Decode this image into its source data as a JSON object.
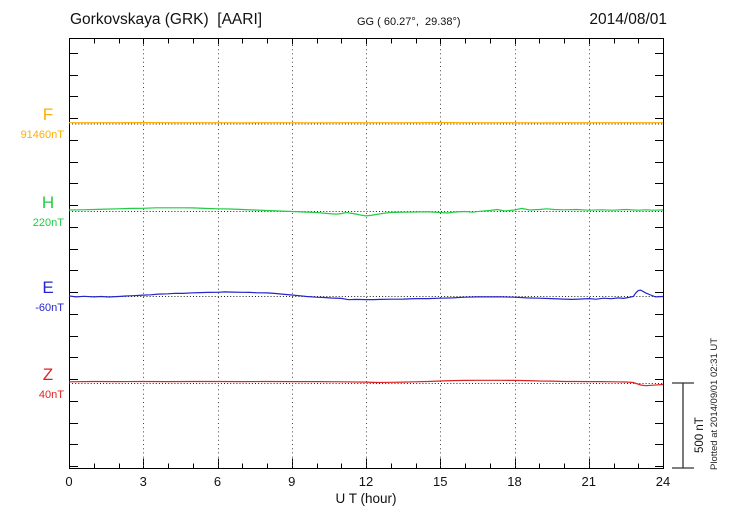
{
  "header": {
    "title": "Gorkovskaya (GRK)  [AARI]",
    "coords": "GG ( 60.27°,  29.38°)",
    "date": "2014/08/01"
  },
  "side": {
    "plotted_at": "Plotted at 2014/09/01 02:31 UT",
    "scale_label": "500 nT"
  },
  "chart_data": {
    "type": "line",
    "xlabel": "U T (hour)",
    "xlim": [
      0,
      24
    ],
    "x_ticks": [
      0,
      3,
      6,
      9,
      12,
      15,
      18,
      21,
      24
    ],
    "x_minor_step_hours": 1,
    "grid": "dotted vertical lines every 3 hours; dotted horizontal baseline per component",
    "scale_bar": {
      "label": "500 nT",
      "nT": 500
    },
    "series": [
      {
        "name": "F",
        "label": "F",
        "unit_label": "91460nT",
        "base": 91460,
        "color": "#FFAF00",
        "points": [
          [
            0,
            91465
          ],
          [
            1,
            91465
          ],
          [
            2,
            91465
          ],
          [
            3,
            91466
          ],
          [
            4,
            91465
          ],
          [
            5,
            91465
          ],
          [
            6,
            91465
          ],
          [
            7,
            91464
          ],
          [
            8,
            91465
          ],
          [
            9,
            91465
          ],
          [
            10,
            91464
          ],
          [
            11,
            91465
          ],
          [
            12,
            91465
          ],
          [
            13,
            91465
          ],
          [
            14,
            91465
          ],
          [
            15,
            91466
          ],
          [
            16,
            91465
          ],
          [
            17,
            91465
          ],
          [
            18,
            91465
          ],
          [
            19,
            91464
          ],
          [
            20,
            91465
          ],
          [
            21,
            91465
          ],
          [
            22,
            91465
          ],
          [
            23,
            91465
          ],
          [
            24,
            91465
          ]
        ]
      },
      {
        "name": "H",
        "label": "H",
        "unit_label": "220nT",
        "base": 220,
        "color": "#22CC44",
        "points": [
          [
            0,
            226
          ],
          [
            0.5,
            227
          ],
          [
            1,
            229
          ],
          [
            1.5,
            231
          ],
          [
            2,
            233
          ],
          [
            2.5,
            235
          ],
          [
            3,
            236
          ],
          [
            3.5,
            239
          ],
          [
            4,
            239
          ],
          [
            4.5,
            239
          ],
          [
            5,
            238
          ],
          [
            5.5,
            235
          ],
          [
            6,
            233
          ],
          [
            6.5,
            232
          ],
          [
            7,
            229
          ],
          [
            7.5,
            226
          ],
          [
            8,
            223
          ],
          [
            8.5,
            220
          ],
          [
            9,
            217
          ],
          [
            9.5,
            214
          ],
          [
            10,
            211
          ],
          [
            10.5,
            205
          ],
          [
            10.8,
            202
          ],
          [
            11,
            205
          ],
          [
            11.2,
            211
          ],
          [
            11.5,
            205
          ],
          [
            11.8,
            196
          ],
          [
            12,
            191
          ],
          [
            12.2,
            194
          ],
          [
            12.5,
            202
          ],
          [
            12.8,
            208
          ],
          [
            13,
            211
          ],
          [
            13.5,
            213
          ],
          [
            14,
            214
          ],
          [
            14.5,
            215
          ],
          [
            15,
            211
          ],
          [
            15.3,
            208
          ],
          [
            15.6,
            214
          ],
          [
            16,
            217
          ],
          [
            16.3,
            213
          ],
          [
            16.6,
            218
          ],
          [
            17,
            223
          ],
          [
            17.3,
            229
          ],
          [
            17.6,
            220
          ],
          [
            18,
            226
          ],
          [
            18.3,
            235
          ],
          [
            18.6,
            226
          ],
          [
            19,
            229
          ],
          [
            19.3,
            233
          ],
          [
            19.6,
            229
          ],
          [
            20,
            227
          ],
          [
            20.5,
            229
          ],
          [
            21,
            225
          ],
          [
            21.5,
            227
          ],
          [
            22,
            225
          ],
          [
            22.5,
            229
          ],
          [
            23,
            225
          ],
          [
            23.3,
            227
          ],
          [
            23.6,
            225
          ],
          [
            24,
            226
          ]
        ]
      },
      {
        "name": "E",
        "label": "E",
        "unit_label": "-60nT",
        "base": -60,
        "color": "#2525CC",
        "points": [
          [
            0,
            -60
          ],
          [
            0.3,
            -65
          ],
          [
            0.6,
            -62
          ],
          [
            1,
            -65
          ],
          [
            1.3,
            -63
          ],
          [
            1.6,
            -66
          ],
          [
            2,
            -63
          ],
          [
            2.3,
            -60
          ],
          [
            2.6,
            -58
          ],
          [
            3,
            -55
          ],
          [
            3.3,
            -53
          ],
          [
            3.6,
            -49
          ],
          [
            4,
            -47
          ],
          [
            4.3,
            -44
          ],
          [
            4.6,
            -45
          ],
          [
            5,
            -41
          ],
          [
            5.3,
            -40
          ],
          [
            5.6,
            -39
          ],
          [
            6,
            -38
          ],
          [
            6.3,
            -36
          ],
          [
            6.6,
            -37
          ],
          [
            7,
            -38
          ],
          [
            7.3,
            -39
          ],
          [
            7.6,
            -41
          ],
          [
            8,
            -42
          ],
          [
            8.3,
            -45
          ],
          [
            8.6,
            -49
          ],
          [
            9,
            -54
          ],
          [
            9.3,
            -58
          ],
          [
            9.6,
            -63
          ],
          [
            10,
            -67
          ],
          [
            10.3,
            -69
          ],
          [
            10.6,
            -72
          ],
          [
            11,
            -74
          ],
          [
            11.3,
            -82
          ],
          [
            11.6,
            -80
          ],
          [
            12,
            -81
          ],
          [
            12.3,
            -81
          ],
          [
            12.6,
            -80
          ],
          [
            13,
            -79
          ],
          [
            13.5,
            -78
          ],
          [
            14,
            -75
          ],
          [
            14.5,
            -75
          ],
          [
            15,
            -73
          ],
          [
            15.5,
            -71
          ],
          [
            16,
            -67
          ],
          [
            16.5,
            -65
          ],
          [
            17,
            -65
          ],
          [
            17.5,
            -65
          ],
          [
            18,
            -67
          ],
          [
            18.5,
            -71
          ],
          [
            19,
            -73
          ],
          [
            19.5,
            -75
          ],
          [
            20,
            -78
          ],
          [
            20.3,
            -80
          ],
          [
            20.6,
            -78
          ],
          [
            21,
            -75
          ],
          [
            21.3,
            -79
          ],
          [
            21.6,
            -73
          ],
          [
            21.9,
            -76
          ],
          [
            22.2,
            -71
          ],
          [
            22.4,
            -74
          ],
          [
            22.6,
            -69
          ],
          [
            22.8,
            -63
          ],
          [
            22.9,
            -42
          ],
          [
            23,
            -28
          ],
          [
            23.1,
            -25
          ],
          [
            23.3,
            -42
          ],
          [
            23.5,
            -54
          ],
          [
            23.7,
            -65
          ],
          [
            24,
            -63
          ]
        ]
      },
      {
        "name": "Z",
        "label": "Z",
        "unit_label": "40nT",
        "base": 40,
        "color": "#DD2222",
        "points": [
          [
            0,
            47
          ],
          [
            1,
            49
          ],
          [
            2,
            48
          ],
          [
            3,
            49
          ],
          [
            4,
            48
          ],
          [
            5,
            49
          ],
          [
            6,
            49
          ],
          [
            7,
            48
          ],
          [
            8,
            49
          ],
          [
            9,
            48
          ],
          [
            10,
            48
          ],
          [
            11,
            47
          ],
          [
            12,
            45
          ],
          [
            12.5,
            43
          ],
          [
            13,
            44
          ],
          [
            13.5,
            45
          ],
          [
            14,
            47
          ],
          [
            14.5,
            49
          ],
          [
            15,
            52
          ],
          [
            15.5,
            54
          ],
          [
            16,
            55
          ],
          [
            16.5,
            56
          ],
          [
            17,
            56
          ],
          [
            17.5,
            56
          ],
          [
            18,
            55
          ],
          [
            18.5,
            54
          ],
          [
            19,
            52
          ],
          [
            19.5,
            51
          ],
          [
            20,
            49
          ],
          [
            20.5,
            49
          ],
          [
            21,
            48
          ],
          [
            21.5,
            48
          ],
          [
            22,
            47
          ],
          [
            22.5,
            46
          ],
          [
            22.8,
            43
          ],
          [
            23.1,
            28
          ],
          [
            23.3,
            24
          ],
          [
            23.6,
            27
          ],
          [
            24,
            31
          ]
        ]
      }
    ]
  }
}
